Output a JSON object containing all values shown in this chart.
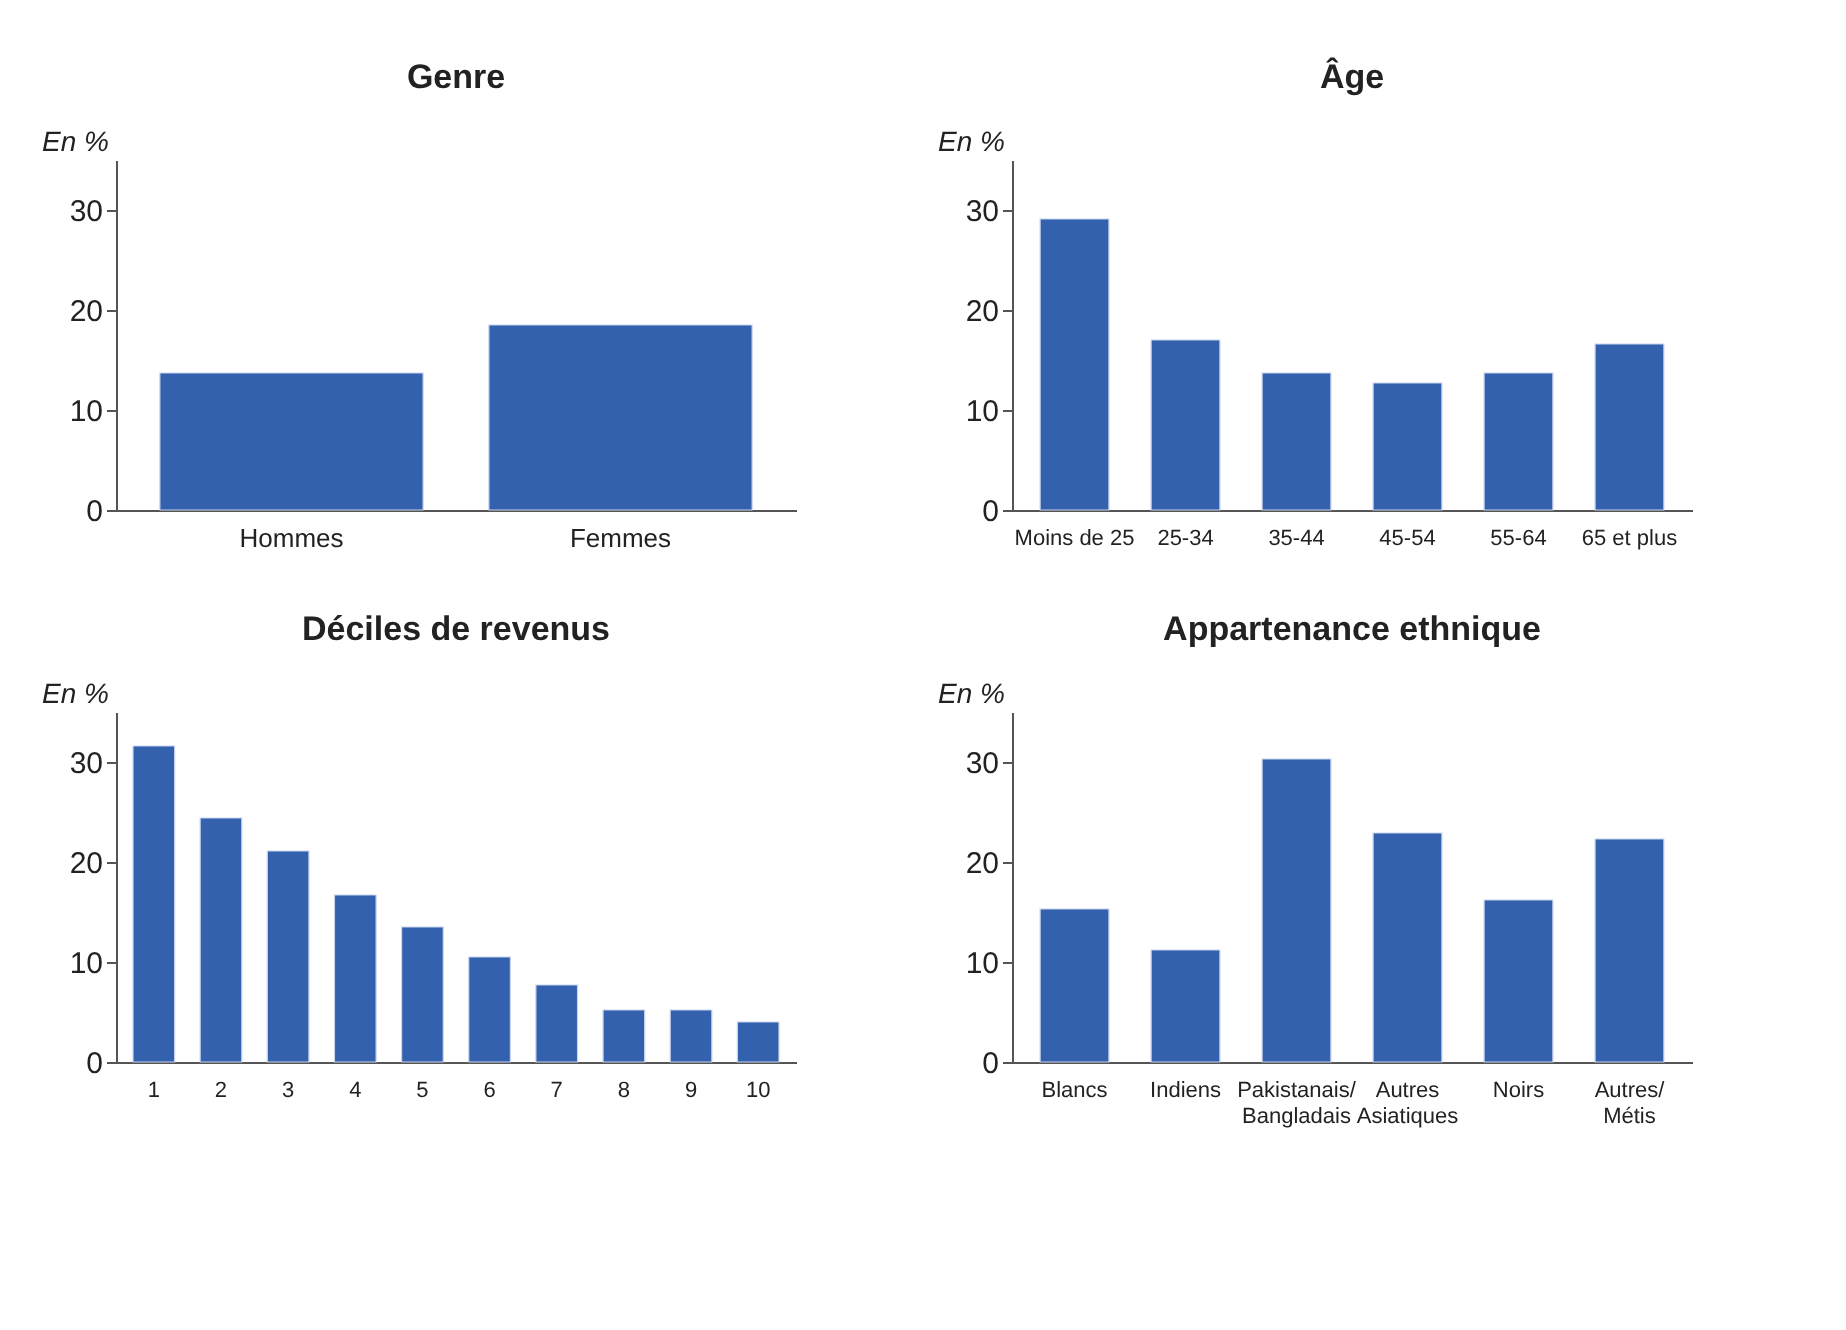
{
  "chart_data": [
    {
      "type": "bar",
      "title": "Genre",
      "ylabel": "En %",
      "categories": [
        "Hommes",
        "Femmes"
      ],
      "values": [
        13.7,
        18.5
      ],
      "color": "#3361ae",
      "ylim": [
        0,
        35
      ],
      "yticks": [
        0,
        10,
        20,
        30
      ],
      "grid": false
    },
    {
      "type": "bar",
      "title": "Âge",
      "ylabel": "En %",
      "categories": [
        "Moins de 25",
        "25-34",
        "35-44",
        "45-54",
        "55-64",
        "65 et plus"
      ],
      "values": [
        29.1,
        17.0,
        13.7,
        12.7,
        13.7,
        16.6
      ],
      "color": "#3361ae",
      "ylim": [
        0,
        35
      ],
      "yticks": [
        0,
        10,
        20,
        30
      ],
      "grid": false
    },
    {
      "type": "bar",
      "title": "Déciles de revenus",
      "ylabel": "En %",
      "categories": [
        "1",
        "2",
        "3",
        "4",
        "5",
        "6",
        "7",
        "8",
        "9",
        "10"
      ],
      "values": [
        31.6,
        24.4,
        21.1,
        16.7,
        13.5,
        10.5,
        7.7,
        5.2,
        5.2,
        4.0
      ],
      "color": "#3361ae",
      "ylim": [
        0,
        35
      ],
      "yticks": [
        0,
        10,
        20,
        30
      ],
      "grid": false
    },
    {
      "type": "bar",
      "title": "Appartenance ethnique",
      "ylabel": "En %",
      "categories": [
        "Blancs",
        "Indiens",
        "Pakistanais/\nBangladais",
        "Autres\nAsiatiques",
        "Noirs",
        "Autres/\nMétis"
      ],
      "values": [
        15.3,
        11.2,
        30.3,
        22.9,
        16.2,
        22.3
      ],
      "color": "#3361ae",
      "ylim": [
        0,
        35
      ],
      "yticks": [
        0,
        10,
        20,
        30
      ],
      "grid": false
    }
  ]
}
